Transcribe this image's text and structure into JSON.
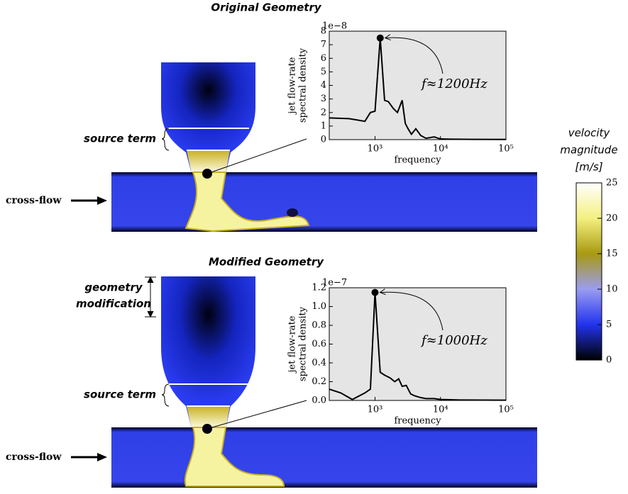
{
  "panels": [
    {
      "title": "Original Geometry",
      "source_term": "source term",
      "cross_flow": "cross-flow"
    },
    {
      "title": "Modified Geometry",
      "geometry_modification": [
        "geometry",
        "modification"
      ],
      "source_term": "source term",
      "cross_flow": "cross-flow"
    }
  ],
  "chart_data": [
    {
      "type": "line",
      "xlabel": "frequency",
      "ylabel": [
        "jet flow-rate",
        "spectral density"
      ],
      "offset_text": "1e−8",
      "annotation": "f≈1200Hz",
      "xscale": "log",
      "xlim": [
        200,
        100000
      ],
      "xticks": [
        {
          "value": 1000,
          "label": "10³"
        },
        {
          "value": 10000,
          "label": "10⁴"
        },
        {
          "value": 100000,
          "label": "10⁵"
        }
      ],
      "ylim": [
        0,
        8
      ],
      "yticks": [
        0,
        1,
        2,
        3,
        4,
        5,
        6,
        7,
        8
      ],
      "series": [
        {
          "color": "#000000",
          "x": [
            200,
            400,
            700,
            850,
            1000,
            1200,
            1400,
            1600,
            1900,
            2200,
            2600,
            2900,
            3200,
            3600,
            4200,
            5000,
            6000,
            8000,
            10000,
            15000,
            30000,
            100000
          ],
          "values": [
            1.6,
            1.55,
            1.35,
            2.0,
            2.1,
            7.5,
            2.9,
            2.8,
            2.3,
            2.0,
            2.9,
            1.2,
            0.8,
            0.4,
            0.8,
            0.3,
            0.1,
            0.2,
            0.05,
            0.03,
            0.02,
            0.01
          ]
        }
      ]
    },
    {
      "type": "line",
      "xlabel": "frequency",
      "ylabel": [
        "jet flow-rate",
        "spectral density"
      ],
      "offset_text": "1e−7",
      "annotation": "f≈1000Hz",
      "xscale": "log",
      "xlim": [
        200,
        100000
      ],
      "xticks": [
        {
          "value": 1000,
          "label": "10³"
        },
        {
          "value": 10000,
          "label": "10⁴"
        },
        {
          "value": 100000,
          "label": "10⁵"
        }
      ],
      "ylim": [
        0,
        1.2
      ],
      "yticks": [
        {
          "value": 0,
          "label": "0.0"
        },
        0.2,
        0.4,
        0.6,
        0.8,
        {
          "value": 1,
          "label": "1.0"
        },
        1.2
      ],
      "series": [
        {
          "color": "#000000",
          "x": [
            200,
            300,
            450,
            700,
            850,
            1000,
            1200,
            1400,
            1700,
            2000,
            2300,
            2600,
            3000,
            3500,
            4000,
            5000,
            6000,
            8000,
            10000,
            20000,
            100000
          ],
          "values": [
            0.12,
            0.08,
            0.01,
            0.08,
            0.12,
            1.15,
            0.3,
            0.27,
            0.24,
            0.2,
            0.23,
            0.15,
            0.16,
            0.07,
            0.05,
            0.03,
            0.02,
            0.02,
            0.01,
            0.005,
            0.003
          ]
        }
      ]
    },
    {
      "type": "colorbar",
      "title": [
        "velocity",
        "magnitude",
        "[m/s]"
      ],
      "ylim": [
        0,
        25
      ],
      "yticks": [
        0,
        5,
        10,
        15,
        20,
        25
      ],
      "colormap": [
        "#000000",
        "#2233ee",
        "#9a9cf0",
        "#a89a10",
        "#f4f080",
        "#ffffff"
      ]
    }
  ]
}
